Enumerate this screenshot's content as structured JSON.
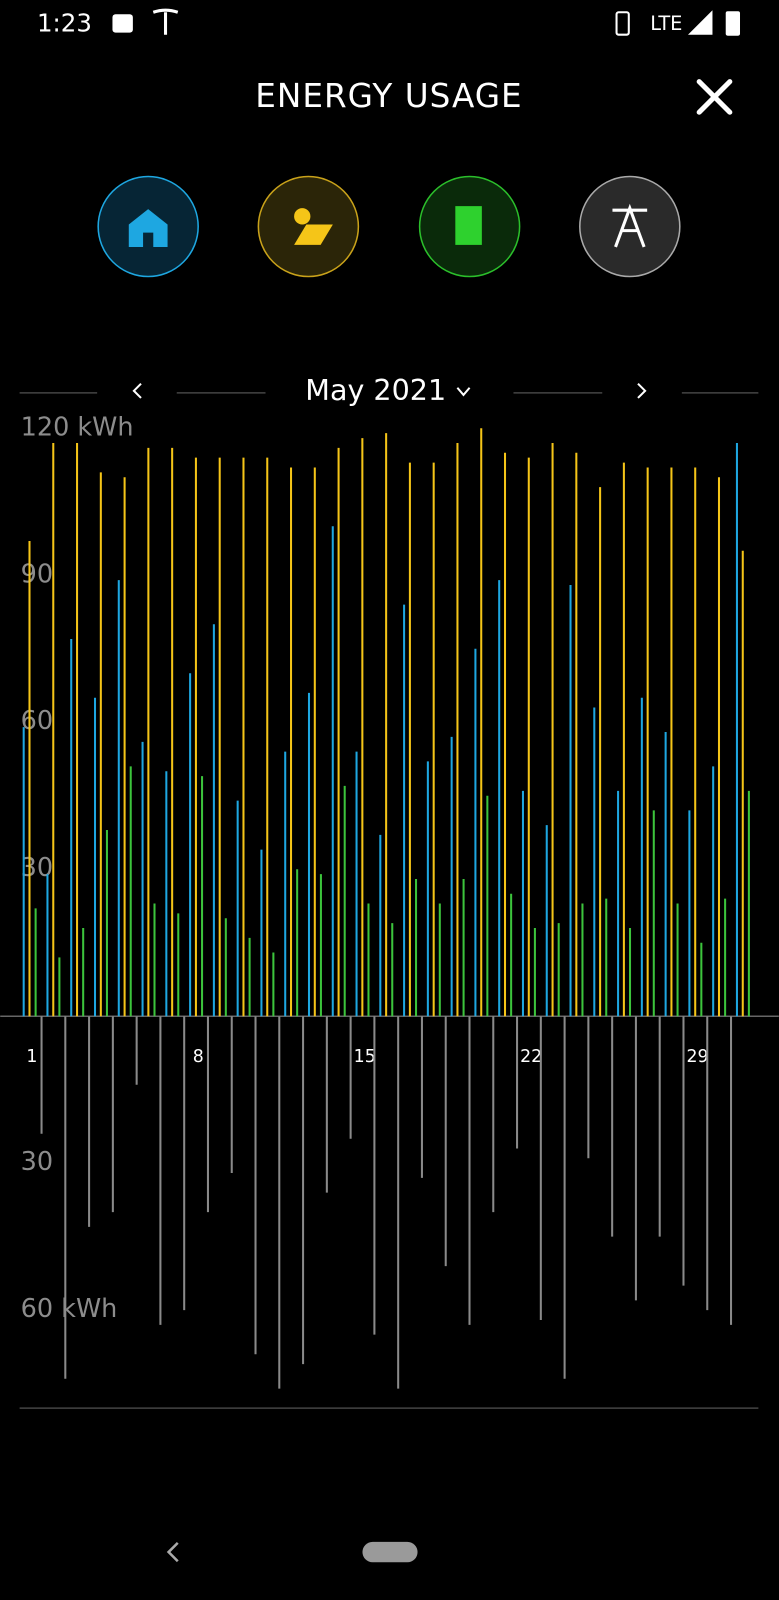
{
  "status_bar": {
    "time": "1:23",
    "network": "LTE"
  },
  "header": {
    "title": "ENERGY USAGE"
  },
  "period": {
    "label": "May 2021"
  },
  "chart_data": {
    "type": "bar",
    "categories": [
      "1",
      null,
      null,
      null,
      null,
      null,
      null,
      "8",
      null,
      null,
      null,
      null,
      null,
      null,
      "15",
      null,
      null,
      null,
      null,
      null,
      null,
      "22",
      null,
      null,
      null,
      null,
      null,
      null,
      "29",
      null,
      null
    ],
    "series": [
      {
        "color": "#1ea7e1",
        "values": [
          59,
          29,
          77,
          65,
          89,
          56,
          50,
          70,
          80,
          44,
          34,
          54,
          66,
          100,
          54,
          37,
          84,
          52,
          57,
          75,
          89,
          46,
          39,
          88,
          63,
          46,
          65,
          58,
          42,
          51,
          117
        ]
      },
      {
        "color": "#f5c518",
        "values": [
          97,
          117,
          117,
          111,
          110,
          116,
          116,
          114,
          114,
          114,
          114,
          112,
          112,
          116,
          118,
          119,
          113,
          113,
          117,
          120,
          115,
          114,
          117,
          115,
          108,
          113,
          112,
          112,
          112,
          110,
          95
        ]
      },
      {
        "color": "#3cc43c",
        "values": [
          22,
          12,
          18,
          38,
          51,
          23,
          21,
          49,
          20,
          16,
          13,
          30,
          29,
          47,
          23,
          19,
          28,
          23,
          28,
          45,
          25,
          18,
          19,
          23,
          24,
          18,
          42,
          23,
          15,
          24,
          46
        ]
      },
      {
        "color": "#8a8a8a",
        "values": [
          -24,
          -74,
          -43,
          -40,
          -14,
          -63,
          -60,
          -40,
          -32,
          -69,
          -76,
          -71,
          -36,
          -25,
          -65,
          -76,
          -33,
          -51,
          -63,
          -40,
          -27,
          -62,
          -74,
          -29,
          -45,
          -58,
          -45,
          -55,
          -60,
          -63,
          0
        ]
      }
    ],
    "ylim": [
      -80,
      124
    ],
    "yticks": [
      {
        "value": 120,
        "label": "120 kWh"
      },
      90,
      60,
      30,
      {
        "value": -30,
        "label": "30"
      },
      {
        "value": -60,
        "label": "60 kWh"
      }
    ],
    "grid": false
  }
}
